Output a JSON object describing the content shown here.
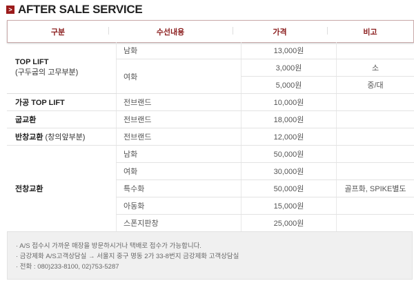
{
  "title": "AFTER SALE SERVICE",
  "headers": [
    "구분",
    "수선내용",
    "가격",
    "비고"
  ],
  "rows": {
    "top_lift": {
      "name": "TOP LIFT",
      "sub": "(구두굽의 고무부분)",
      "items": [
        {
          "content": "남화",
          "price": "13,000원",
          "note": ""
        },
        {
          "content": "여화",
          "prices": [
            {
              "price": "3,000원",
              "note": "소"
            },
            {
              "price": "5,000원",
              "note": "중/대"
            }
          ]
        }
      ]
    },
    "gagong": {
      "name": "가공 TOP LIFT",
      "content": "전브랜드",
      "price": "10,000원"
    },
    "gup": {
      "name": "굽교환",
      "content": "전브랜드",
      "price": "18,000원"
    },
    "banchang": {
      "name": "반창교환",
      "sub": "(창의앞부분)",
      "content": "전브랜드",
      "price": "12,000원"
    },
    "jeonchang": {
      "name": "전창교환",
      "items": [
        {
          "content": "남화",
          "price": "50,000원",
          "note": ""
        },
        {
          "content": "여화",
          "price": "30,000원",
          "note": ""
        },
        {
          "content": "특수화",
          "price": "50,000원",
          "note": "골프화, SPIKE별도"
        },
        {
          "content": "아동화",
          "price": "15,000원",
          "note": ""
        },
        {
          "content": "스폰지판창",
          "price": "25,000원",
          "note": ""
        }
      ]
    }
  },
  "notes": [
    "· A/S 접수시 가까운 매장을 방문하시거나 택배로 접수가 가능합니다.",
    "· 금강제화 A/S고객상담실 → 서울지 중구 명동 2가 33-8번지 금강제화 고객상담실",
    "· 전화 : 080)233-8100, 02)753-5287"
  ]
}
